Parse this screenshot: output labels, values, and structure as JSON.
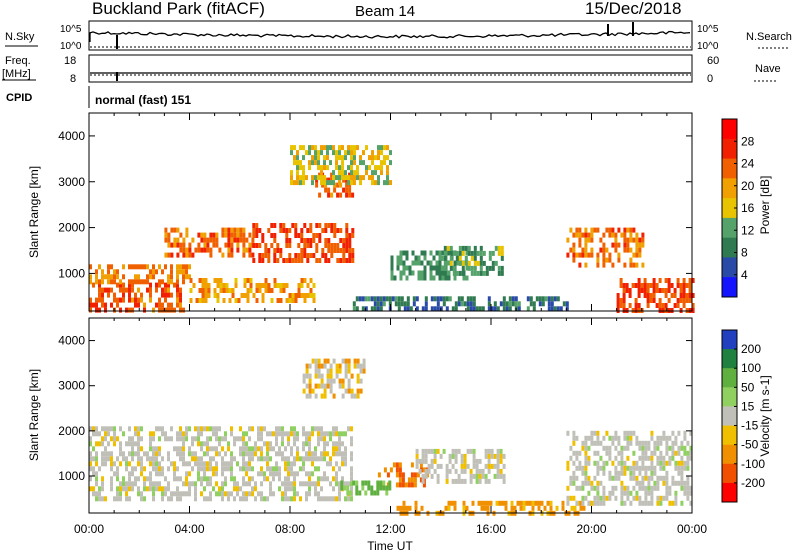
{
  "header": {
    "station": "Buckland Park (fitACF)",
    "beam": "Beam 14",
    "date": "15/Dec/2018"
  },
  "noise_panel": {
    "left_label": "N.Sky",
    "right_label": "N.Search",
    "tick_top": "10^5",
    "tick_bottom": "10^0"
  },
  "freq_panel": {
    "left_label_1": "Freq.",
    "left_label_2": "[MHz]",
    "right_label": "Nave",
    "left_ticks": [
      "18",
      "8"
    ],
    "right_ticks": [
      "60",
      "0"
    ]
  },
  "cpid": {
    "label": "CPID",
    "value": "normal (fast) 151"
  },
  "colors": {
    "power_scale": [
      "#1414ff",
      "#2a4aa8",
      "#2f7a50",
      "#55a36a",
      "#e8c400",
      "#f0a000",
      "#f06000",
      "#f02000",
      "#ff0000"
    ],
    "velocity_scale": [
      "#2040c0",
      "#208040",
      "#60b040",
      "#90d060",
      "#c0c0b8",
      "#f0c000",
      "#f09000",
      "#f05000",
      "#ff0000"
    ]
  },
  "chart_data": [
    {
      "type": "heatmap",
      "name": "power",
      "xlabel": "",
      "ylabel": "Slant Range [km]",
      "ylim": [
        180,
        4500
      ],
      "xlim_hours": [
        0,
        24
      ],
      "yticks": [
        "1000",
        "2000",
        "3000",
        "4000"
      ],
      "colorbar_label": "Power [dB]",
      "colorbar_ticks": [
        "4",
        "8",
        "12",
        "16",
        "20",
        "24",
        "28"
      ],
      "regions": [
        {
          "t0": 0.0,
          "t1": 3.8,
          "r0": 200,
          "r1": 800,
          "v": 27
        },
        {
          "t0": 0.0,
          "t1": 4.0,
          "r0": 800,
          "r1": 1200,
          "v": 24
        },
        {
          "t0": 3.0,
          "t1": 6.5,
          "r0": 1400,
          "r1": 2000,
          "v": 26
        },
        {
          "t0": 6.5,
          "t1": 10.5,
          "r0": 1300,
          "r1": 2100,
          "v": 28
        },
        {
          "t0": 4.0,
          "t1": 9.0,
          "r0": 400,
          "r1": 900,
          "v": 22
        },
        {
          "t0": 9.0,
          "t1": 10.5,
          "r0": 2700,
          "r1": 3200,
          "v": 26
        },
        {
          "t0": 8.0,
          "t1": 12.0,
          "r0": 3000,
          "r1": 3800,
          "v": 18
        },
        {
          "t0": 12.0,
          "t1": 15.0,
          "r0": 900,
          "r1": 1500,
          "v": 12
        },
        {
          "t0": 14.0,
          "t1": 16.5,
          "r0": 1000,
          "r1": 1600,
          "v": 13
        },
        {
          "t0": 10.5,
          "t1": 19.0,
          "r0": 200,
          "r1": 500,
          "v": 9
        },
        {
          "t0": 19.0,
          "t1": 22.0,
          "r0": 1200,
          "r1": 2000,
          "v": 25
        },
        {
          "t0": 21.0,
          "t1": 24.0,
          "r0": 200,
          "r1": 900,
          "v": 28
        }
      ]
    },
    {
      "type": "heatmap",
      "name": "velocity",
      "xlabel": "Time UT",
      "ylabel": "Slant Range [km]",
      "ylim": [
        180,
        4500
      ],
      "xlim_hours": [
        0,
        24
      ],
      "xticks": [
        "00:00",
        "04:00",
        "08:00",
        "12:00",
        "16:00",
        "20:00",
        "00:00"
      ],
      "yticks": [
        "1000",
        "2000",
        "3000",
        "4000"
      ],
      "colorbar_label": "Velocity [m s-1]",
      "colorbar_ticks": [
        "200",
        "100",
        "50",
        "15",
        "-15",
        "-50",
        "-100",
        "-200"
      ],
      "regions": [
        {
          "t0": 0.0,
          "t1": 10.5,
          "r0": 500,
          "r1": 2100,
          "v": 0
        },
        {
          "t0": 8.5,
          "t1": 11.0,
          "r0": 2800,
          "r1": 3600,
          "v": -20
        },
        {
          "t0": 11.5,
          "t1": 13.5,
          "r0": 800,
          "r1": 1300,
          "v": -70
        },
        {
          "t0": 10.0,
          "t1": 12.0,
          "r0": 600,
          "r1": 900,
          "v": 40
        },
        {
          "t0": 13.0,
          "t1": 16.5,
          "r0": 900,
          "r1": 1600,
          "v": 0
        },
        {
          "t0": 12.0,
          "t1": 20.0,
          "r0": 200,
          "r1": 450,
          "v": -40
        },
        {
          "t0": 19.0,
          "t1": 24.0,
          "r0": 400,
          "r1": 2000,
          "v": 0
        }
      ]
    }
  ]
}
